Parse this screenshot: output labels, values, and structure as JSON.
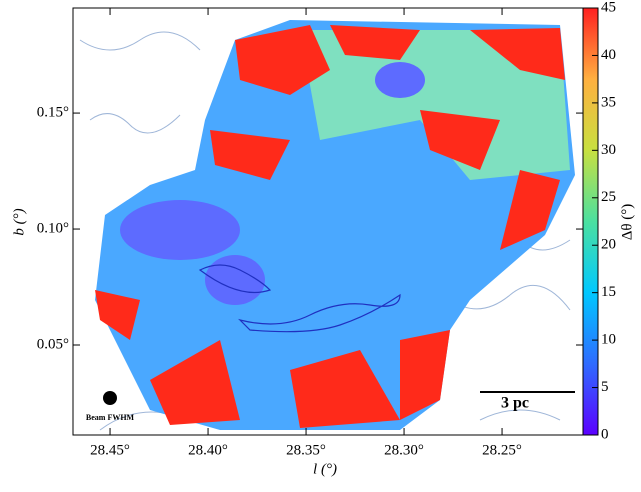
{
  "chart_data": {
    "type": "heatmap",
    "xlabel": "l (°)",
    "ylabel": "b (°)",
    "colorbar_label": "Δθ (°)",
    "xlim": [
      28.4689,
      28.2087
    ],
    "ylim": [
      0.0112,
      0.1953
    ],
    "xticks": [
      {
        "value": 28.45,
        "label": "28.45°"
      },
      {
        "value": 28.4,
        "label": "28.40°"
      },
      {
        "value": 28.35,
        "label": "28.35°"
      },
      {
        "value": 28.3,
        "label": "28.30°"
      },
      {
        "value": 28.25,
        "label": "28.25°"
      }
    ],
    "yticks": [
      {
        "value": 0.05,
        "label": "0.05°"
      },
      {
        "value": 0.1,
        "label": "0.10°"
      },
      {
        "value": 0.15,
        "label": "0.15°"
      }
    ],
    "clim": [
      0,
      45
    ],
    "cticks": [
      0,
      5,
      10,
      15,
      20,
      25,
      30,
      35,
      40,
      45
    ],
    "colormap": [
      "#5b00ff",
      "#2f6bff",
      "#00c8ff",
      "#4be0a0",
      "#c8e040",
      "#ffb040",
      "#ff2020"
    ],
    "annotations": {
      "beam": "Beam FWHM",
      "scale": "3 pc"
    }
  }
}
